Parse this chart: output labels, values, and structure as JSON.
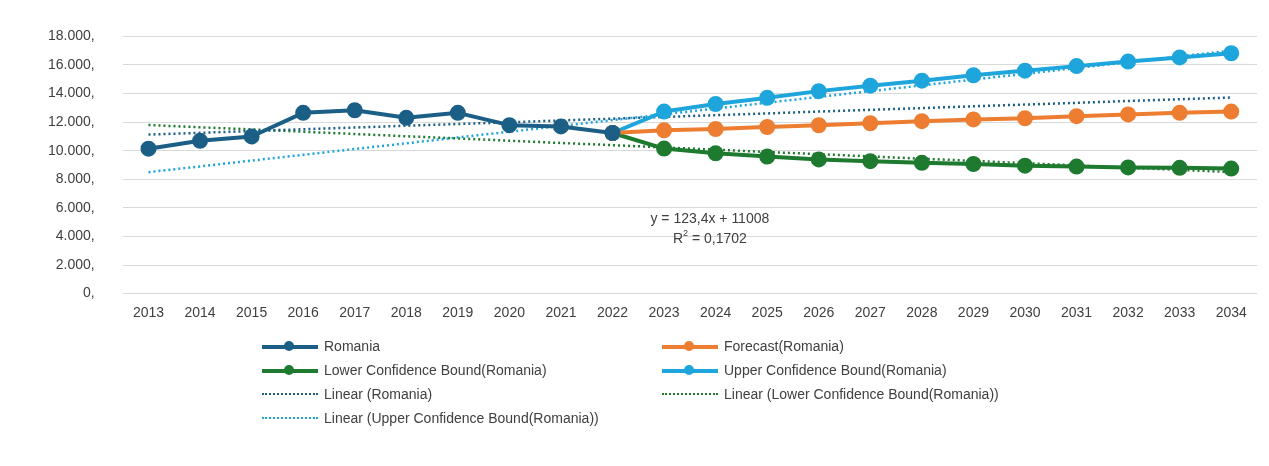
{
  "chart_data": {
    "type": "line",
    "categories": [
      "2013",
      "2014",
      "2015",
      "2016",
      "2017",
      "2018",
      "2019",
      "2020",
      "2021",
      "2022",
      "2023",
      "2024",
      "2025",
      "2026",
      "2027",
      "2028",
      "2029",
      "2030",
      "2031",
      "2032",
      "2033",
      "2034"
    ],
    "ylim": [
      0,
      18000
    ],
    "yticks": [
      {
        "value": 0,
        "label": "0,"
      },
      {
        "value": 2000,
        "label": "2.000,"
      },
      {
        "value": 4000,
        "label": "4.000,"
      },
      {
        "value": 6000,
        "label": "6.000,"
      },
      {
        "value": 8000,
        "label": "8.000,"
      },
      {
        "value": 10000,
        "label": "10.000,"
      },
      {
        "value": 12000,
        "label": "12.000,"
      },
      {
        "value": 14000,
        "label": "14.000,"
      },
      {
        "value": 16000,
        "label": "16.000,"
      },
      {
        "value": 18000,
        "label": "18.000,"
      }
    ],
    "grid": "y",
    "legend": "bottom",
    "marker": "circle",
    "annotations": [
      "y = 123,4x + 11008",
      "R$^{2}$ = 0,1702"
    ],
    "series": [
      {
        "name": "Romania",
        "color": "#1b5e86",
        "line_style": "solid",
        "values": [
          10140,
          10690,
          11000,
          12650,
          12830,
          12300,
          12650,
          11790,
          11700,
          11240,
          null,
          null,
          null,
          null,
          null,
          null,
          null,
          null,
          null,
          null,
          null,
          null
        ]
      },
      {
        "name": "Forecast(Romania)",
        "color": "#ed7d31",
        "line_style": "solid",
        "values": [
          null,
          null,
          null,
          null,
          null,
          null,
          null,
          null,
          null,
          11240,
          11430,
          11520,
          11660,
          11780,
          11920,
          12070,
          12190,
          12270,
          12420,
          12540,
          12650,
          12740
        ]
      },
      {
        "name": "Lower Confidence Bound(Romania)",
        "color": "#1e7a2e",
        "line_style": "solid",
        "values": [
          null,
          null,
          null,
          null,
          null,
          null,
          null,
          null,
          null,
          11240,
          10150,
          9820,
          9590,
          9390,
          9270,
          9150,
          9070,
          8950,
          8890,
          8830,
          8800,
          8750
        ]
      },
      {
        "name": "Upper Confidence Bound(Romania)",
        "color": "#1ea5dc",
        "line_style": "solid",
        "values": [
          null,
          null,
          null,
          null,
          null,
          null,
          null,
          null,
          null,
          11240,
          12740,
          13270,
          13700,
          14170,
          14550,
          14900,
          15280,
          15600,
          15920,
          16240,
          16530,
          16820
        ]
      },
      {
        "name": "Linear (Romania)",
        "color": "#1b5e86",
        "line_style": "dotted",
        "marker": "none",
        "values": [
          11130,
          11250,
          11380,
          11500,
          11620,
          11750,
          11870,
          11990,
          12120,
          12240,
          12360,
          12490,
          12610,
          12740,
          12860,
          12980,
          13110,
          13230,
          13350,
          13480,
          13600,
          13720
        ]
      },
      {
        "name": "Linear (Lower Confidence Bound(Romania))",
        "color": "#1e7a2e",
        "line_style": "dotted",
        "marker": "none",
        "values": [
          11800,
          11640,
          11490,
          11330,
          11170,
          11010,
          10860,
          10700,
          10540,
          10390,
          10230,
          10070,
          9910,
          9760,
          9600,
          9440,
          9290,
          9130,
          8970,
          8810,
          8660,
          8500
        ]
      },
      {
        "name": "Linear (Upper Confidence Bound(Romania))",
        "color": "#1ea5dc",
        "line_style": "dotted",
        "marker": "none",
        "values": [
          8500,
          8900,
          9310,
          9710,
          10120,
          10520,
          10930,
          11330,
          11740,
          12140,
          12550,
          12950,
          13360,
          13760,
          14170,
          14570,
          14980,
          15380,
          15790,
          16190,
          16600,
          17000
        ]
      }
    ]
  }
}
